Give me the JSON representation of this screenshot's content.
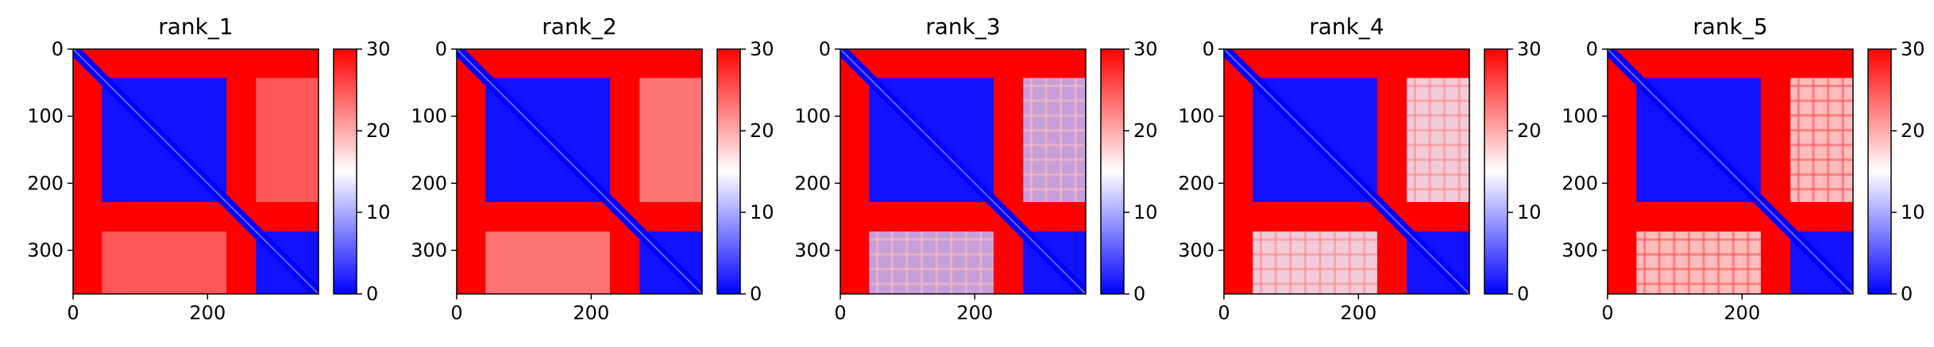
{
  "chart_data": [
    {
      "type": "heatmap",
      "title": "rank_1",
      "xticks": [
        0,
        200
      ],
      "yticks": [
        0,
        100,
        200,
        300
      ],
      "colorbar_ticks": [
        0,
        10,
        20,
        30
      ],
      "vmin": 0,
      "vmax": 30,
      "colormap": "bwr",
      "n": 365,
      "xlim": [
        0,
        365
      ],
      "ylim": [
        365,
        0
      ],
      "domains": [
        [
          0,
          43
        ],
        [
          43,
          228
        ],
        [
          228,
          272
        ],
        [
          272,
          365
        ]
      ],
      "intra_domain_value": 1,
      "inter_domain_values": [
        [
          43,
          272,
          26
        ],
        [
          43,
          365,
          25
        ],
        [
          272,
          365,
          25
        ]
      ],
      "offdiag_block_value": 24
    },
    {
      "type": "heatmap",
      "title": "rank_2",
      "xticks": [
        0,
        200
      ],
      "yticks": [
        0,
        100,
        200,
        300
      ],
      "colorbar_ticks": [
        0,
        10,
        20,
        30
      ],
      "vmin": 0,
      "vmax": 30,
      "colormap": "bwr",
      "n": 365,
      "xlim": [
        0,
        365
      ],
      "ylim": [
        365,
        0
      ],
      "domains": [
        [
          0,
          43
        ],
        [
          43,
          228
        ],
        [
          228,
          272
        ],
        [
          272,
          365
        ]
      ],
      "intra_domain_value": 1,
      "offdiag_block_value": 22
    },
    {
      "type": "heatmap",
      "title": "rank_3",
      "xticks": [
        0,
        200
      ],
      "yticks": [
        0,
        100,
        200,
        300
      ],
      "colorbar_ticks": [
        0,
        10,
        20,
        30
      ],
      "vmin": 0,
      "vmax": 30,
      "colormap": "bwr",
      "n": 365,
      "xlim": [
        0,
        365
      ],
      "ylim": [
        365,
        0
      ],
      "domains": [
        [
          0,
          43
        ],
        [
          43,
          228
        ],
        [
          228,
          272
        ],
        [
          272,
          365
        ]
      ],
      "intra_domain_value": 1,
      "offdiag_block_value": 11
    },
    {
      "type": "heatmap",
      "title": "rank_4",
      "xticks": [
        0,
        200
      ],
      "yticks": [
        0,
        100,
        200,
        300
      ],
      "colorbar_ticks": [
        0,
        10,
        20,
        30
      ],
      "vmin": 0,
      "vmax": 30,
      "colormap": "bwr",
      "n": 365,
      "xlim": [
        0,
        365
      ],
      "ylim": [
        365,
        0
      ],
      "domains": [
        [
          0,
          43
        ],
        [
          43,
          228
        ],
        [
          228,
          272
        ],
        [
          272,
          365
        ]
      ],
      "intra_domain_value": 1,
      "offdiag_block_value": 14
    },
    {
      "type": "heatmap",
      "title": "rank_5",
      "xticks": [
        0,
        200
      ],
      "yticks": [
        0,
        100,
        200,
        300
      ],
      "colorbar_ticks": [
        0,
        10,
        20,
        30
      ],
      "vmin": 0,
      "vmax": 30,
      "colormap": "bwr",
      "n": 365,
      "xlim": [
        0,
        365
      ],
      "ylim": [
        365,
        0
      ],
      "domains": [
        [
          0,
          43
        ],
        [
          43,
          228
        ],
        [
          228,
          272
        ],
        [
          272,
          365
        ]
      ],
      "intra_domain_value": 1,
      "offdiag_block_value": 17
    }
  ]
}
